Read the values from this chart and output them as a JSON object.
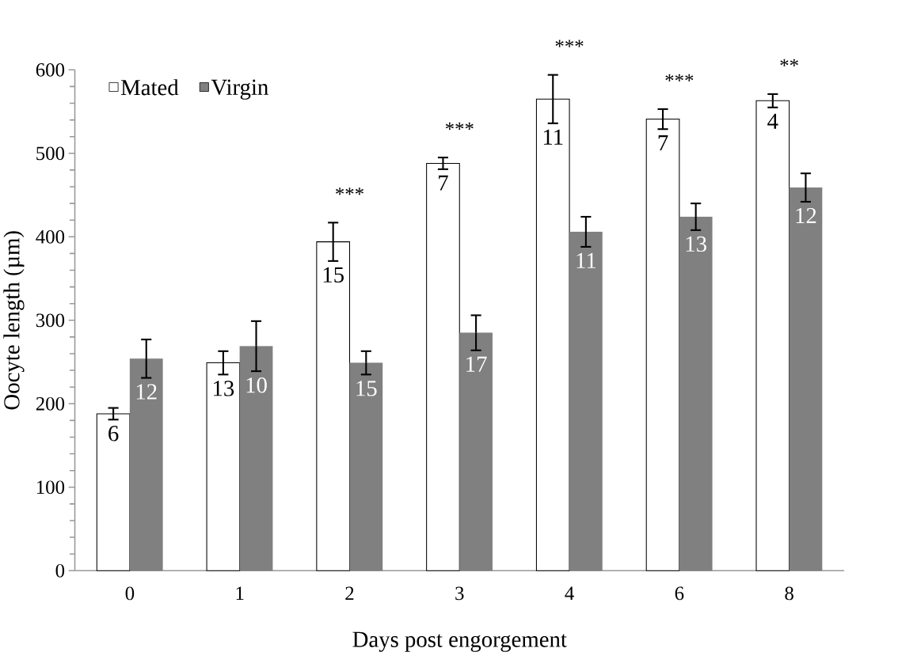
{
  "chart_data": {
    "type": "bar",
    "xlabel": "Days post engorgement",
    "ylabel": "Oocyte length (µm)",
    "categories": [
      "0",
      "1",
      "2",
      "3",
      "4",
      "6",
      "8"
    ],
    "series": [
      {
        "name": "Mated",
        "color": "#ffffff",
        "values": [
          188,
          249,
          394,
          488,
          565,
          541,
          563
        ],
        "errors": [
          7,
          14,
          23,
          7,
          29,
          12,
          8
        ]
      },
      {
        "name": "Virgin",
        "color": "#808080",
        "values": [
          254,
          269,
          249,
          285,
          406,
          424,
          459
        ],
        "errors": [
          23,
          30,
          14,
          21,
          18,
          16,
          17
        ]
      }
    ],
    "ylim": [
      0,
      600
    ],
    "yticks": [
      0,
      100,
      200,
      300,
      400,
      500,
      600
    ],
    "legend": "top left",
    "annotations": [
      "6",
      "13",
      "15",
      "7",
      "11",
      "7",
      "4",
      "12",
      "10",
      "15",
      "17",
      "11",
      "13",
      "12",
      "***",
      "***",
      "***",
      "***",
      "**"
    ]
  }
}
